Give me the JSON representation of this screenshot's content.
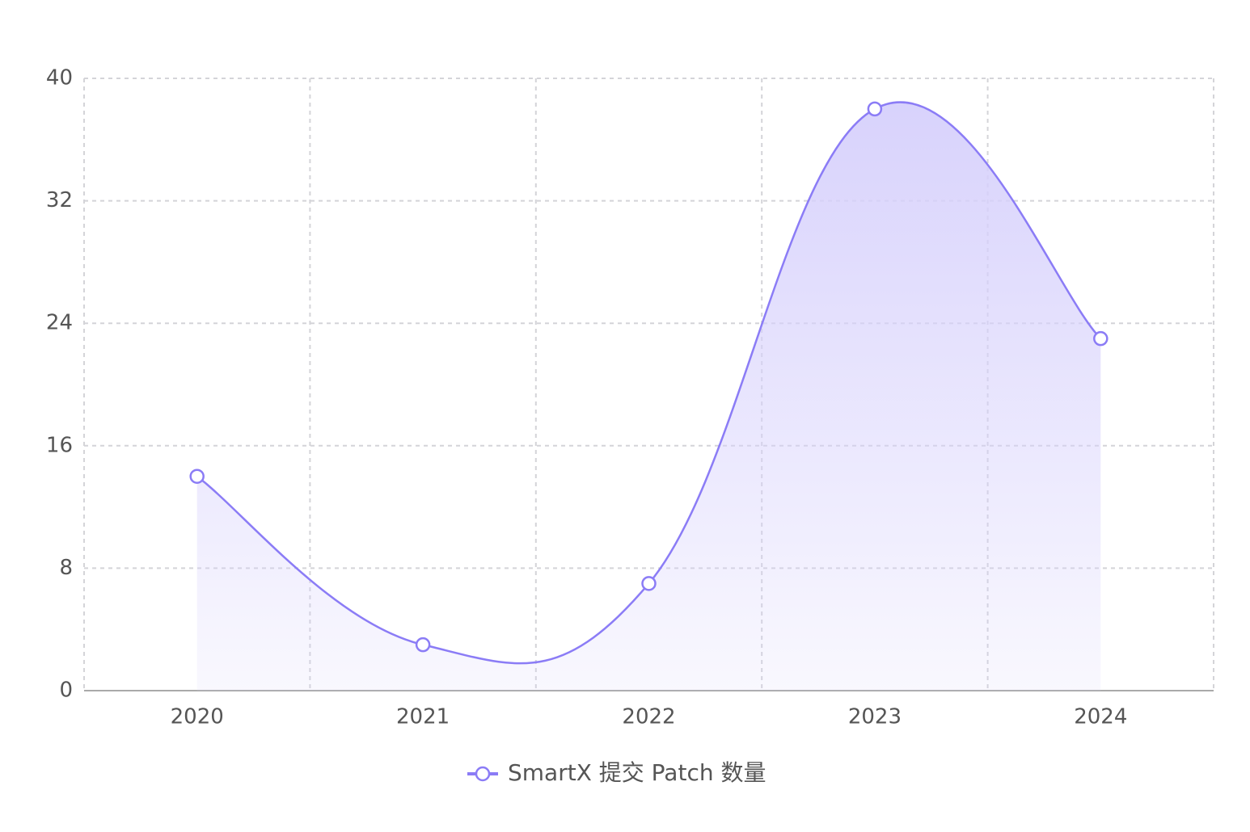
{
  "chart_data": {
    "type": "line",
    "categories": [
      "2020",
      "2021",
      "2022",
      "2023",
      "2024"
    ],
    "series": [
      {
        "name": "SmartX 提交 Patch 数量",
        "color": "#8b7cf6",
        "values": [
          14,
          3,
          7,
          38,
          23
        ]
      }
    ],
    "ylim": [
      0,
      40
    ],
    "yticks": [
      0,
      8,
      16,
      24,
      32,
      40
    ],
    "grid": true,
    "smooth": true,
    "area": true,
    "legend": "bottom"
  }
}
